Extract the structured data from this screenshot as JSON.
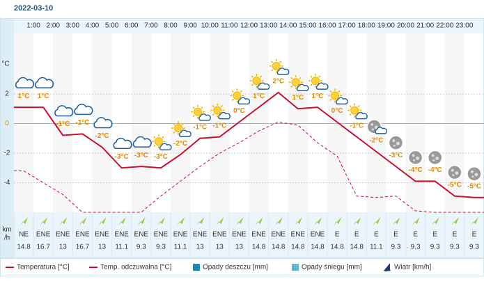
{
  "chart_data": {
    "type": "line",
    "title": "2022-03-10",
    "hour_labels": [
      "1:00",
      "2:00",
      "3:00",
      "4:00",
      "5:00",
      "6:00",
      "7:00",
      "8:00",
      "9:00",
      "10:00",
      "11:00",
      "12:00",
      "13:00",
      "14:00",
      "15:00",
      "16:00",
      "17:00",
      "18:00",
      "19:00",
      "20:00",
      "21:00",
      "22:00",
      "23:00"
    ],
    "y_label": "°C",
    "ylim": [
      -6,
      6
    ],
    "yticks": [
      2,
      0,
      -2,
      -4
    ],
    "grid": true,
    "series": [
      {
        "name": "Temperatura [°C]",
        "color": "#c8102e",
        "style": "solid",
        "values": [
          1.1,
          1.1,
          -0.8,
          -0.7,
          -1.6,
          -3.0,
          -2.9,
          -3.0,
          -2.1,
          -1.0,
          -0.9,
          0.1,
          1.1,
          2.1,
          1.0,
          1.1,
          0.1,
          -0.9,
          -1.9,
          -2.9,
          -3.9,
          -3.9,
          -4.9,
          -5.0
        ],
        "value_labels": [
          "1°C",
          "1°C",
          "-1°C",
          "-1°C",
          "-2°C",
          "-3°C",
          "-3°C",
          "-3°C",
          "-2°C",
          "-1°C",
          "-1°C",
          "0°C",
          "1°C",
          "2°C",
          "1°C",
          "1°C",
          "0°C",
          "-1°C",
          "-2°C",
          "-3°C",
          "-4°C",
          "-4°C",
          "-5°C",
          "-5°C"
        ]
      },
      {
        "name": "Temp. odczuwalna [°C]",
        "color": "#c8102e",
        "style": "dashed",
        "values": [
          -3.2,
          -4.0,
          -4.8,
          -6.0,
          -6.0,
          -6.0,
          -6.0,
          -4.9,
          -3.9,
          -2.9,
          -2.0,
          -1.3,
          -0.5,
          0.1,
          -0.1,
          -1.3,
          -2.2,
          -4.9,
          -5.0,
          -4.9,
          -5.9,
          -6.0,
          -6.0,
          -6.0
        ]
      }
    ],
    "icons": [
      "cloud",
      "cloud",
      "cloud",
      "cloud",
      "cloud",
      "cloud",
      "cloud",
      "sun-cloud",
      "sun-cloud",
      "sun-cloud",
      "sun-cloud",
      "sun-cloud",
      "sun-cloud",
      "sun-cloud",
      "sun-cloud",
      "sun-cloud",
      "sun-cloud",
      "sun-cloud",
      "moon-cloud",
      "moon",
      "moon",
      "moon",
      "moon",
      "moon"
    ],
    "wind_unit": [
      "km",
      "/h"
    ],
    "wind_directions": [
      "NE",
      "ENE",
      "ENE",
      "ENE",
      "ENE",
      "ENE",
      "ENE",
      "ENE",
      "ENE",
      "ENE",
      "ENE",
      "ENE",
      "ENE",
      "ENE",
      "ENE",
      "ENE",
      "E",
      "E",
      "E",
      "E",
      "E",
      "E",
      "E",
      "E"
    ],
    "wind_speeds": [
      14.8,
      16.7,
      13,
      16.7,
      13,
      11.1,
      9.3,
      9.3,
      11.1,
      13,
      13,
      13,
      14.8,
      14.8,
      14.8,
      14.8,
      14.8,
      14.8,
      11.1,
      9.3,
      9.3,
      9.3,
      9.3,
      9.3
    ],
    "legend_extra": [
      {
        "name": "Opady deszczu [mm]",
        "color": "#1b87b8"
      },
      {
        "name": "Opady śniegu [mm]",
        "color": "#5fb8d6"
      },
      {
        "name": "Wiatr [km/h]",
        "color": "#1f3c78"
      }
    ]
  }
}
